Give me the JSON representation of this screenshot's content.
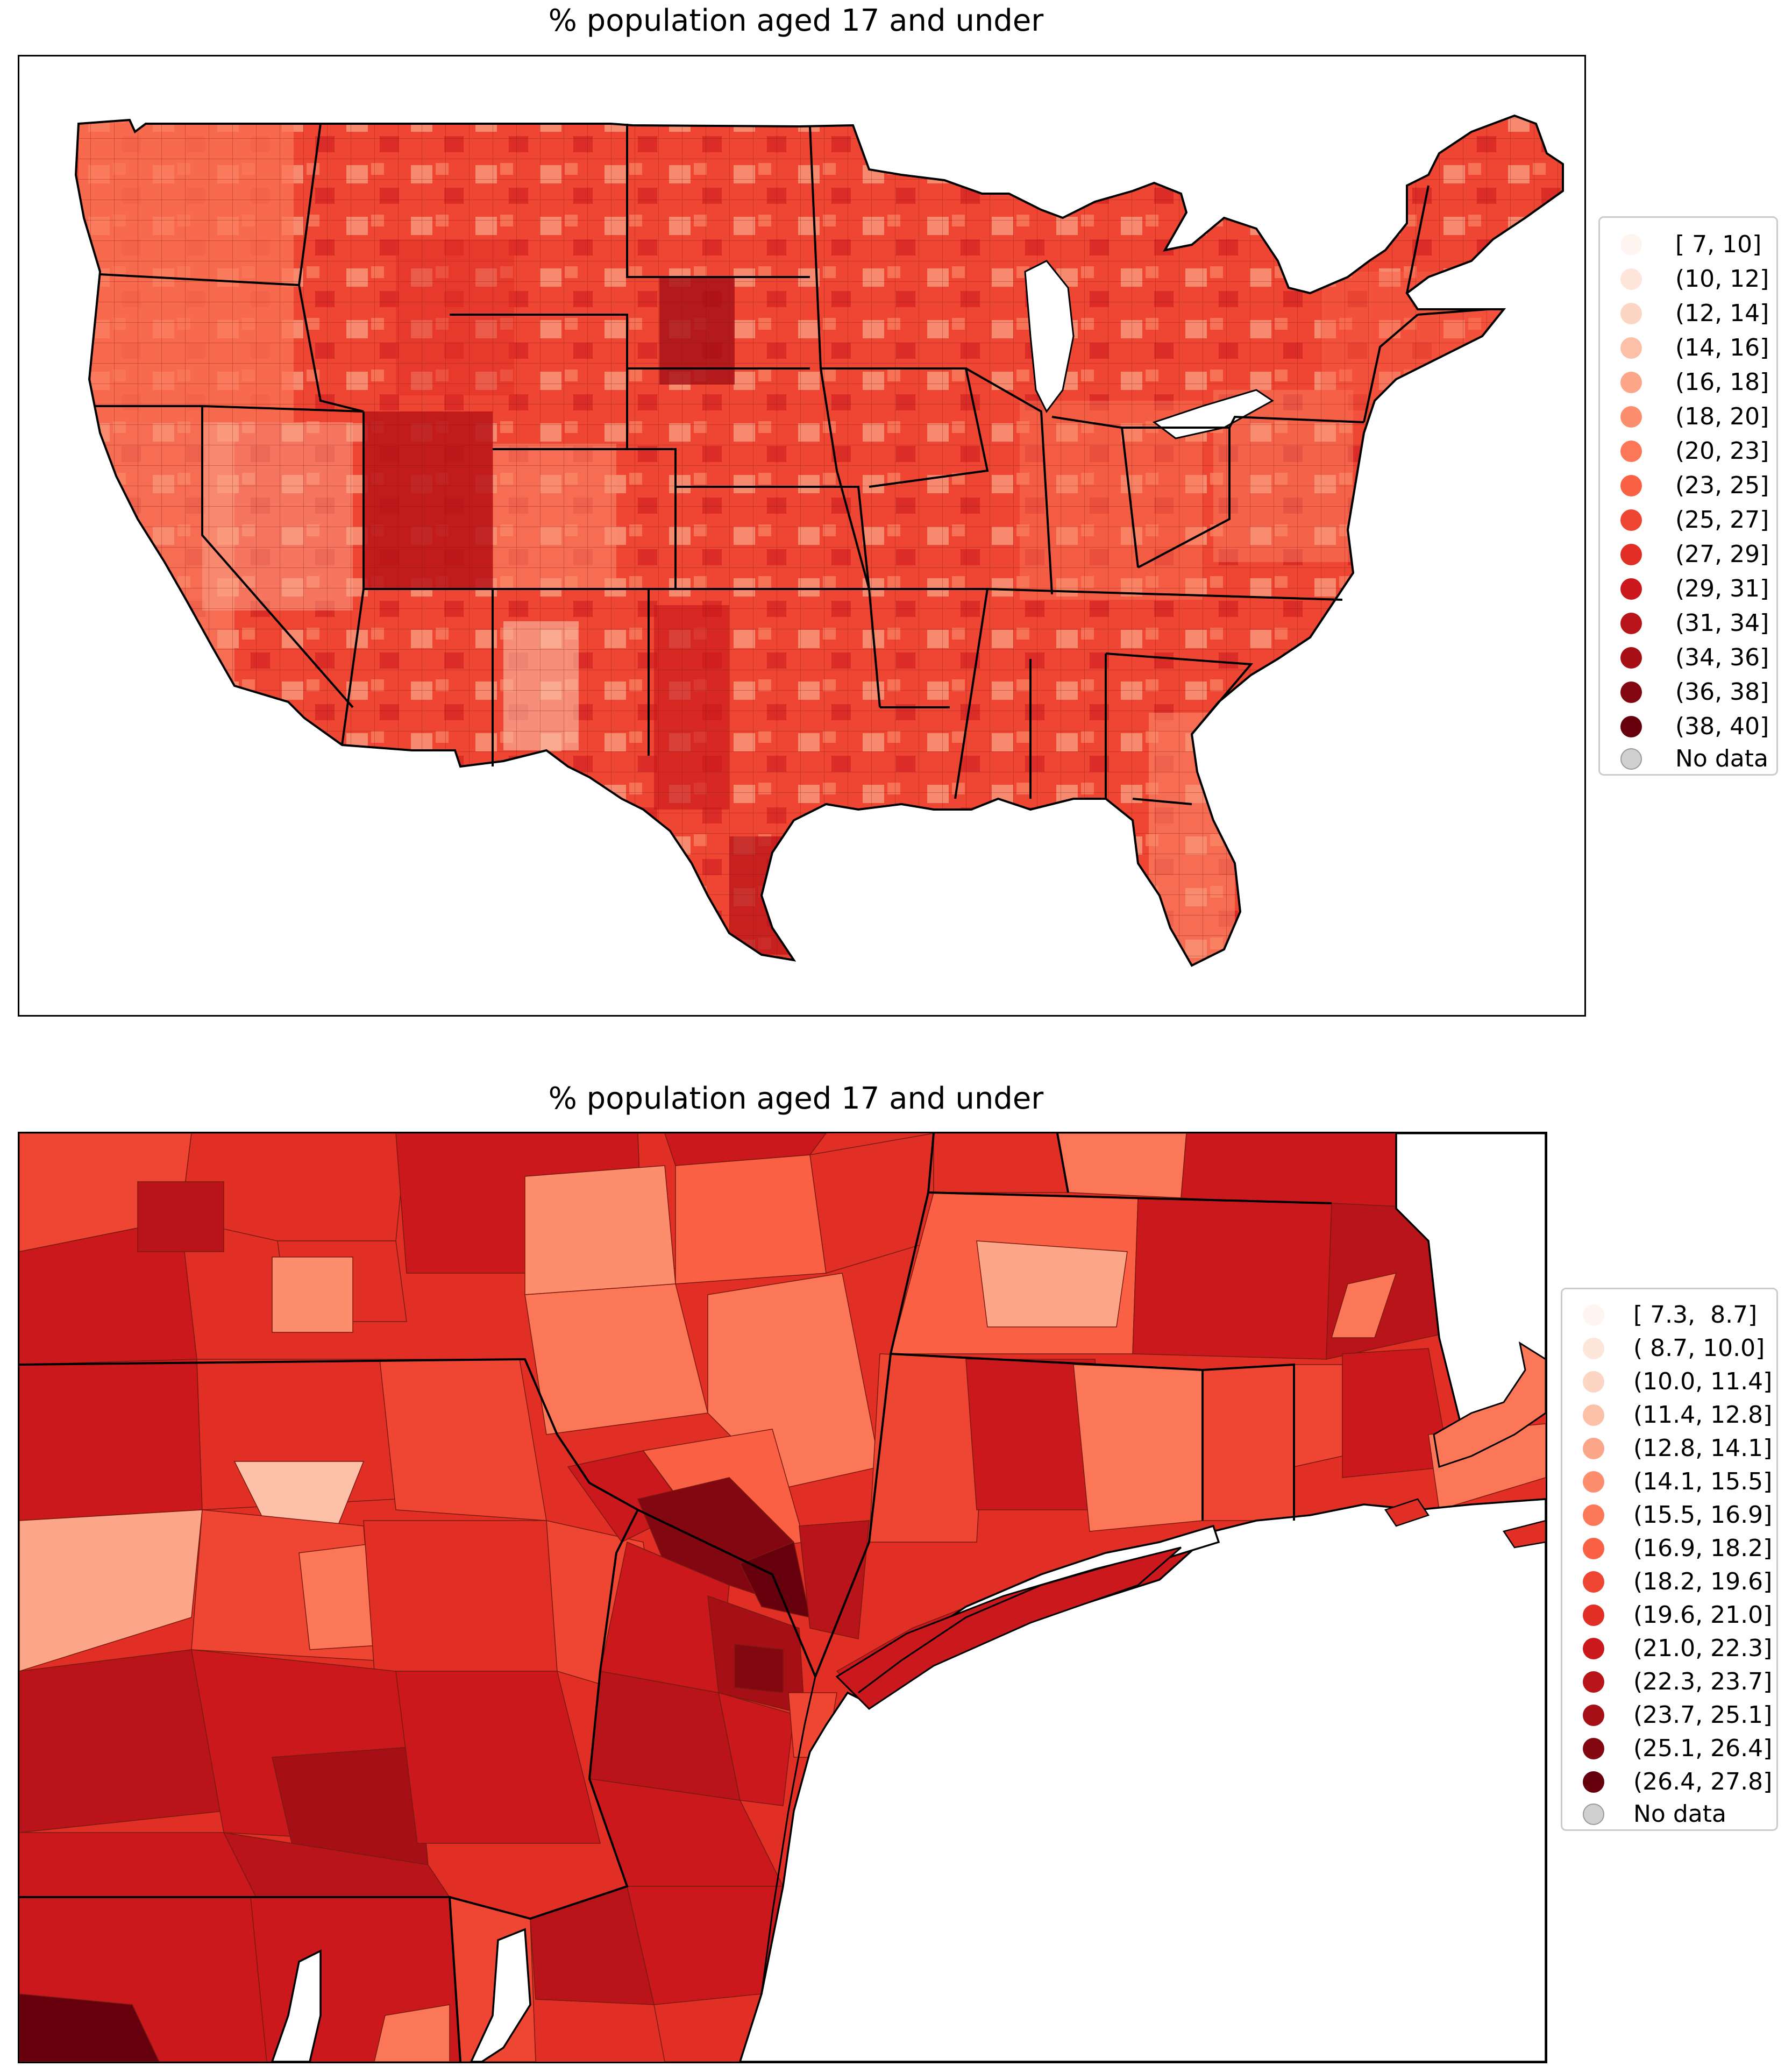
{
  "figures": [
    {
      "id": "us",
      "title": "% population aged 17 and under",
      "legend": {
        "labels": [
          "[ 7, 10]",
          "(10, 12]",
          "(12, 14]",
          "(14, 16]",
          "(16, 18]",
          "(18, 20]",
          "(20, 23]",
          "(23, 25]",
          "(25, 27]",
          "(27, 29]",
          "(29, 31]",
          "(31, 34]",
          "(34, 36]",
          "(36, 38]",
          "(38, 40]"
        ],
        "colors": [
          "#fff5f0",
          "#fee6da",
          "#fdd5c4",
          "#fcc0a8",
          "#fca689",
          "#fc8e6e",
          "#fb7757",
          "#f96044",
          "#ef4533",
          "#e12f26",
          "#cb181d",
          "#b91419",
          "#a50f15",
          "#820711",
          "#67000d"
        ],
        "no_data_label": "No data",
        "no_data_color": "#d0d0d0"
      }
    },
    {
      "id": "northeast",
      "title": "% population aged 17 and under",
      "legend": {
        "labels": [
          "[ 7.3,  8.7]",
          "( 8.7, 10.0]",
          "(10.0, 11.4]",
          "(11.4, 12.8]",
          "(12.8, 14.1]",
          "(14.1, 15.5]",
          "(15.5, 16.9]",
          "(16.9, 18.2]",
          "(18.2, 19.6]",
          "(19.6, 21.0]",
          "(21.0, 22.3]",
          "(22.3, 23.7]",
          "(23.7, 25.1]",
          "(25.1, 26.4]",
          "(26.4, 27.8]"
        ],
        "colors": [
          "#fff5f0",
          "#fee6da",
          "#fdd5c4",
          "#fcc0a8",
          "#fca689",
          "#fc8e6e",
          "#fb7757",
          "#f96044",
          "#ef4533",
          "#e12f26",
          "#cb181d",
          "#b91419",
          "#a50f15",
          "#820711",
          "#67000d"
        ],
        "no_data_label": "No data",
        "no_data_color": "#d0d0d0"
      }
    }
  ]
}
